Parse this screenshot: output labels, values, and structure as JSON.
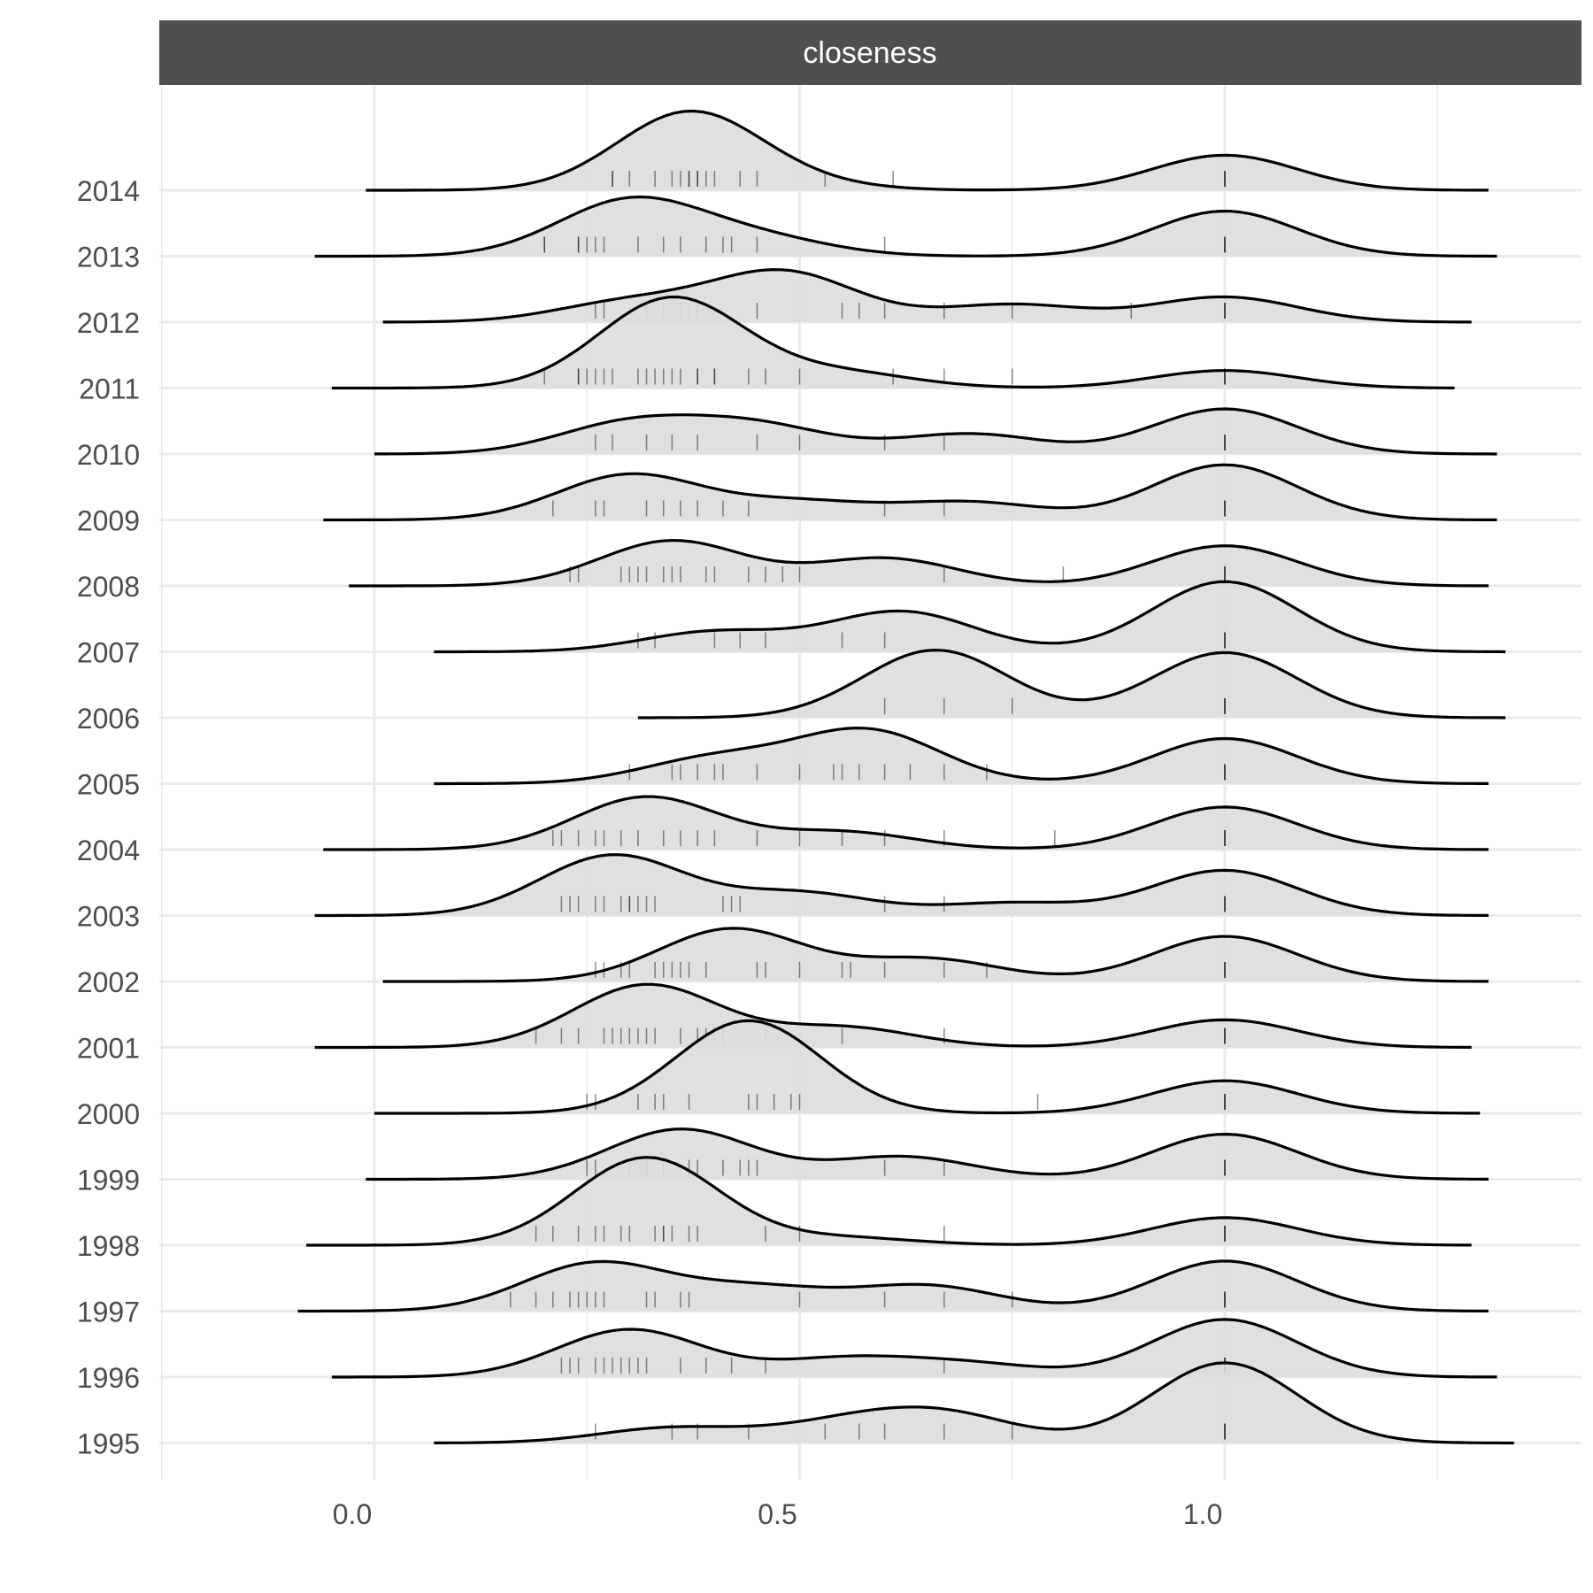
{
  "chart_data": {
    "type": "ridgeline",
    "facet_label": "closeness",
    "x_ticks": [
      0.0,
      0.5,
      1.0
    ],
    "x_tick_labels": [
      "0.0",
      "0.5",
      "1.0"
    ],
    "xlim": [
      -0.25,
      1.42
    ],
    "grid": true,
    "colors": {
      "fill": "#dddddd",
      "stroke": "#000000",
      "strip": "#4f4f4f",
      "grid": "#ebebeb",
      "text": "#4d4d4d"
    },
    "density_note": "peaks listed as [x, relative height]",
    "series": [
      {
        "year": "2014",
        "x_min": -0.01,
        "x_max": 1.31,
        "peaks": [
          [
            0.37,
            1.55
          ],
          [
            0.5,
            0.1
          ],
          [
            1.0,
            0.7
          ]
        ],
        "rugs": [
          0.28,
          0.28,
          0.3,
          0.33,
          0.35,
          0.36,
          0.37,
          0.37,
          0.38,
          0.38,
          0.39,
          0.4,
          0.43,
          0.45,
          0.53,
          0.61,
          1.0
        ]
      },
      {
        "year": "2013",
        "x_min": -0.07,
        "x_max": 1.32,
        "peaks": [
          [
            0.3,
            1.1
          ],
          [
            0.45,
            0.35
          ],
          [
            1.0,
            0.9
          ]
        ],
        "rugs": [
          0.2,
          0.2,
          0.24,
          0.24,
          0.25,
          0.26,
          0.27,
          0.31,
          0.34,
          0.36,
          0.39,
          0.41,
          0.42,
          0.45,
          0.6,
          1.0
        ]
      },
      {
        "year": "2012",
        "x_min": 0.01,
        "x_max": 1.29,
        "peaks": [
          [
            0.3,
            0.4
          ],
          [
            0.48,
            1.0
          ],
          [
            0.75,
            0.35
          ],
          [
            1.0,
            0.5
          ]
        ],
        "rugs": [
          0.26,
          0.27,
          0.32,
          0.34,
          0.36,
          0.37,
          0.38,
          0.45,
          0.55,
          0.57,
          0.6,
          0.67,
          0.75,
          0.89,
          1.0
        ]
      },
      {
        "year": "2011",
        "x_min": -0.05,
        "x_max": 1.27,
        "peaks": [
          [
            0.35,
            1.8
          ],
          [
            0.55,
            0.3
          ],
          [
            1.0,
            0.35
          ]
        ],
        "rugs": [
          0.2,
          0.24,
          0.24,
          0.25,
          0.26,
          0.27,
          0.28,
          0.31,
          0.32,
          0.33,
          0.34,
          0.35,
          0.36,
          0.38,
          0.38,
          0.4,
          0.4,
          0.44,
          0.46,
          0.5,
          0.61,
          0.67,
          0.75,
          1.0
        ]
      },
      {
        "year": "2010",
        "x_min": 0.0,
        "x_max": 1.32,
        "peaks": [
          [
            0.3,
            0.6
          ],
          [
            0.45,
            0.55
          ],
          [
            0.7,
            0.4
          ],
          [
            1.0,
            0.9
          ]
        ],
        "rugs": [
          0.26,
          0.28,
          0.32,
          0.35,
          0.38,
          0.45,
          0.5,
          0.6,
          0.67,
          1.0
        ]
      },
      {
        "year": "2009",
        "x_min": -0.06,
        "x_max": 1.32,
        "peaks": [
          [
            0.3,
            0.9
          ],
          [
            0.5,
            0.35
          ],
          [
            0.7,
            0.35
          ],
          [
            1.0,
            1.1
          ]
        ],
        "rugs": [
          0.21,
          0.26,
          0.27,
          0.32,
          0.34,
          0.36,
          0.38,
          0.41,
          0.44,
          0.6,
          0.67,
          1.0
        ]
      },
      {
        "year": "2008",
        "x_min": -0.03,
        "x_max": 1.31,
        "peaks": [
          [
            0.35,
            0.9
          ],
          [
            0.6,
            0.55
          ],
          [
            1.0,
            0.8
          ]
        ],
        "rugs": [
          0.23,
          0.24,
          0.29,
          0.3,
          0.31,
          0.32,
          0.34,
          0.35,
          0.36,
          0.39,
          0.4,
          0.44,
          0.46,
          0.48,
          0.5,
          0.67,
          0.81,
          1.0
        ]
      },
      {
        "year": "2007",
        "x_min": 0.07,
        "x_max": 1.33,
        "peaks": [
          [
            0.4,
            0.4
          ],
          [
            0.62,
            0.8
          ],
          [
            1.0,
            1.4
          ]
        ],
        "rugs": [
          0.31,
          0.33,
          0.4,
          0.43,
          0.46,
          0.55,
          0.6,
          1.0
        ]
      },
      {
        "year": "2006",
        "x_min": 0.31,
        "x_max": 1.33,
        "peaks": [
          [
            0.66,
            1.35
          ],
          [
            1.0,
            1.3
          ]
        ],
        "rugs": [
          0.6,
          0.67,
          0.75,
          1.0
        ]
      },
      {
        "year": "2005",
        "x_min": 0.07,
        "x_max": 1.31,
        "peaks": [
          [
            0.4,
            0.5
          ],
          [
            0.58,
            1.05
          ],
          [
            1.0,
            0.9
          ]
        ],
        "rugs": [
          0.3,
          0.35,
          0.36,
          0.38,
          0.4,
          0.41,
          0.45,
          0.5,
          0.54,
          0.55,
          0.57,
          0.6,
          0.63,
          0.67,
          0.72,
          1.0
        ]
      },
      {
        "year": "2004",
        "x_min": -0.06,
        "x_max": 1.31,
        "peaks": [
          [
            0.32,
            1.05
          ],
          [
            0.55,
            0.35
          ],
          [
            1.0,
            0.85
          ]
        ],
        "rugs": [
          0.21,
          0.22,
          0.24,
          0.26,
          0.27,
          0.29,
          0.31,
          0.34,
          0.36,
          0.38,
          0.4,
          0.45,
          0.5,
          0.55,
          0.6,
          0.67,
          0.8,
          1.0
        ]
      },
      {
        "year": "2003",
        "x_min": -0.07,
        "x_max": 1.31,
        "peaks": [
          [
            0.28,
            1.2
          ],
          [
            0.5,
            0.45
          ],
          [
            0.75,
            0.25
          ],
          [
            1.0,
            0.9
          ]
        ],
        "rugs": [
          0.22,
          0.23,
          0.24,
          0.26,
          0.27,
          0.29,
          0.3,
          0.3,
          0.31,
          0.32,
          0.33,
          0.41,
          0.42,
          0.43,
          0.6,
          0.67,
          1.0
        ]
      },
      {
        "year": "2002",
        "x_min": 0.01,
        "x_max": 1.31,
        "peaks": [
          [
            0.42,
            1.05
          ],
          [
            0.65,
            0.45
          ],
          [
            1.0,
            0.9
          ]
        ],
        "rugs": [
          0.26,
          0.27,
          0.29,
          0.3,
          0.33,
          0.34,
          0.35,
          0.36,
          0.37,
          0.39,
          0.45,
          0.46,
          0.5,
          0.55,
          0.56,
          0.6,
          0.67,
          0.72,
          1.0
        ]
      },
      {
        "year": "2001",
        "x_min": -0.07,
        "x_max": 1.29,
        "peaks": [
          [
            0.32,
            1.25
          ],
          [
            0.55,
            0.4
          ],
          [
            1.0,
            0.55
          ]
        ],
        "rugs": [
          0.19,
          0.22,
          0.24,
          0.27,
          0.28,
          0.29,
          0.3,
          0.31,
          0.32,
          0.33,
          0.36,
          0.38,
          0.39,
          0.4,
          0.41,
          0.46,
          0.55,
          0.67,
          1.0
        ]
      },
      {
        "year": "2000",
        "x_min": 0.0,
        "x_max": 1.3,
        "peaks": [
          [
            0.44,
            1.85
          ],
          [
            1.0,
            0.65
          ]
        ],
        "rugs": [
          0.25,
          0.26,
          0.31,
          0.33,
          0.34,
          0.37,
          0.44,
          0.45,
          0.47,
          0.49,
          0.5,
          0.78,
          1.0
        ]
      },
      {
        "year": "1999",
        "x_min": -0.01,
        "x_max": 1.31,
        "peaks": [
          [
            0.36,
            1.0
          ],
          [
            0.62,
            0.45
          ],
          [
            1.0,
            0.9
          ]
        ],
        "rugs": [
          0.25,
          0.26,
          0.3,
          0.32,
          0.34,
          0.37,
          0.38,
          0.41,
          0.43,
          0.44,
          0.45,
          0.6,
          0.67,
          1.0
        ]
      },
      {
        "year": "1998",
        "x_min": -0.08,
        "x_max": 1.29,
        "peaks": [
          [
            0.32,
            1.75
          ],
          [
            0.55,
            0.15
          ],
          [
            1.0,
            0.55
          ]
        ],
        "rugs": [
          0.19,
          0.21,
          0.24,
          0.26,
          0.27,
          0.29,
          0.3,
          0.33,
          0.34,
          0.34,
          0.35,
          0.37,
          0.38,
          0.46,
          0.5,
          0.67,
          1.0
        ]
      },
      {
        "year": "1997",
        "x_min": -0.09,
        "x_max": 1.31,
        "peaks": [
          [
            0.26,
            0.95
          ],
          [
            0.45,
            0.45
          ],
          [
            0.65,
            0.5
          ],
          [
            1.0,
            1.0
          ]
        ],
        "rugs": [
          0.16,
          0.19,
          0.21,
          0.23,
          0.24,
          0.25,
          0.26,
          0.27,
          0.32,
          0.33,
          0.36,
          0.37,
          0.5,
          0.6,
          0.67,
          0.75,
          1.0
        ]
      },
      {
        "year": "1996",
        "x_min": -0.05,
        "x_max": 1.32,
        "peaks": [
          [
            0.3,
            0.95
          ],
          [
            0.55,
            0.35
          ],
          [
            0.7,
            0.25
          ],
          [
            1.0,
            1.15
          ]
        ],
        "rugs": [
          0.22,
          0.23,
          0.24,
          0.26,
          0.27,
          0.28,
          0.29,
          0.3,
          0.31,
          0.32,
          0.36,
          0.39,
          0.42,
          0.46,
          0.67,
          1.0
        ]
      },
      {
        "year": "1995",
        "x_min": 0.07,
        "x_max": 1.34,
        "peaks": [
          [
            0.35,
            0.3
          ],
          [
            0.55,
            0.35
          ],
          [
            0.67,
            0.55
          ],
          [
            1.0,
            1.6
          ]
        ],
        "rugs": [
          0.26,
          0.35,
          0.38,
          0.44,
          0.53,
          0.57,
          0.6,
          0.67,
          0.75,
          1.0
        ]
      }
    ]
  }
}
